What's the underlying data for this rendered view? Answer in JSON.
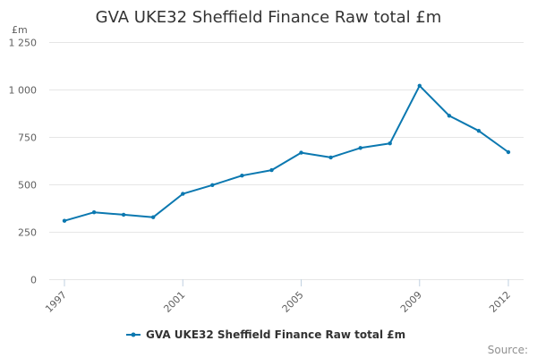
{
  "chart_data": {
    "type": "line",
    "title": "GVA UKE32 Sheffield Finance Raw total £m",
    "ylabel": "£m",
    "xlabel": "",
    "x": [
      1997,
      1998,
      1999,
      2000,
      2001,
      2002,
      2003,
      2004,
      2005,
      2006,
      2007,
      2008,
      2009,
      2010,
      2011,
      2012
    ],
    "series": [
      {
        "name": "GVA UKE32 Sheffield Finance Raw total £m",
        "color": "#0b78b0",
        "values": [
          308,
          353,
          340,
          327,
          450,
          496,
          546,
          575,
          667,
          642,
          692,
          716,
          1020,
          862,
          782,
          670
        ]
      }
    ],
    "ylim": [
      0,
      1250
    ],
    "y_ticks": [
      0,
      250,
      500,
      750,
      1000,
      1250
    ],
    "y_tick_labels": [
      "0",
      "250",
      "500",
      "750",
      "1 000",
      "1 250"
    ],
    "x_tick_labels": [
      "1997",
      "2001",
      "2005",
      "2009",
      "2012"
    ],
    "grid": true,
    "legend": "bottom-center",
    "source_label": "Source:"
  }
}
